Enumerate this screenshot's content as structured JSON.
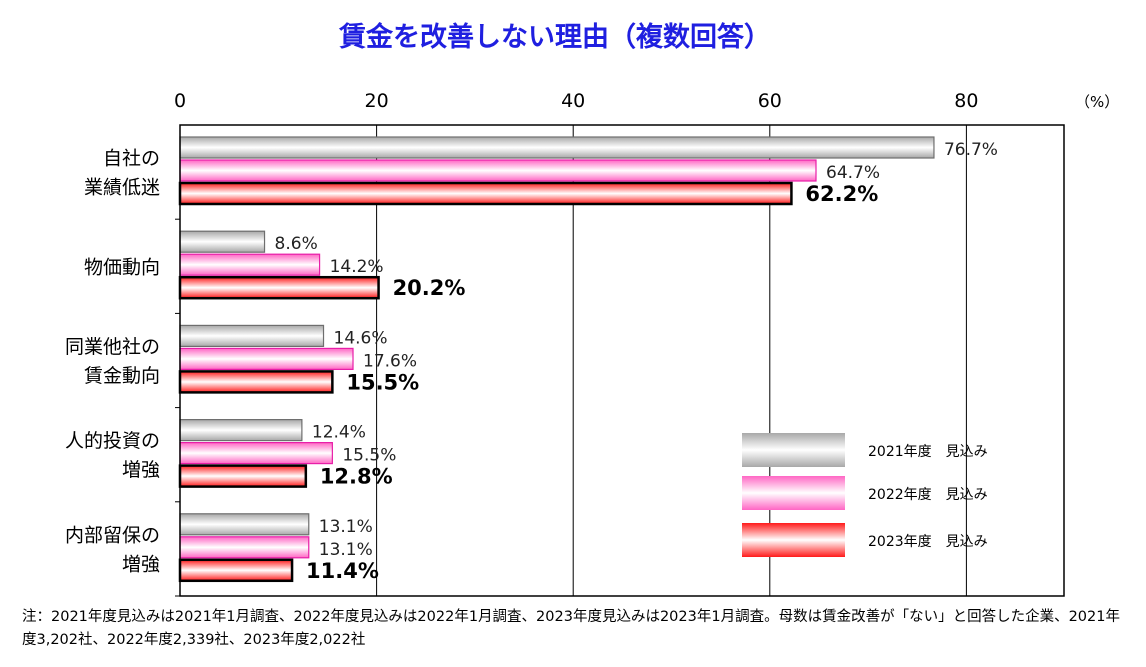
{
  "chart_data": {
    "type": "bar",
    "orientation": "horizontal",
    "title": "賃金を改善しない理由（複数回答）",
    "unit": "（%）",
    "xlim": [
      0,
      90
    ],
    "xticks": [
      0,
      20,
      40,
      60,
      80
    ],
    "grid": true,
    "legend_position": "bottom-right",
    "categories": [
      [
        "自社の",
        "業績低迷"
      ],
      [
        "物価動向"
      ],
      [
        "同業他社の",
        "賃金動向"
      ],
      [
        "人的投資の",
        "増強"
      ],
      [
        "内部留保の",
        "増強"
      ]
    ],
    "series": [
      {
        "name": "2021年度　見込み",
        "values": [
          76.7,
          8.6,
          14.6,
          12.4,
          13.1
        ],
        "labels": [
          "76.7%",
          "8.6%",
          "14.6%",
          "12.4%",
          "13.1%"
        ],
        "color": "#b0b0b0"
      },
      {
        "name": "2022年度　見込み",
        "values": [
          64.7,
          14.2,
          17.6,
          15.5,
          13.1
        ],
        "labels": [
          "64.7%",
          "14.2%",
          "17.6%",
          "15.5%",
          "13.1%"
        ],
        "color": "#ff6ec7"
      },
      {
        "name": "2023年度　見込み",
        "values": [
          62.2,
          20.2,
          15.5,
          12.8,
          11.4
        ],
        "labels": [
          "62.2%",
          "20.2%",
          "15.5%",
          "12.8%",
          "11.4%"
        ],
        "color": "#ff2020"
      }
    ]
  },
  "note": "注：2021年度見込みは2021年1月調査、2022年度見込みは2022年1月調査、2023年度見込みは2023年1月調査。母数は賃金改善が「ない」と回答した企業、2021年度3,202社、2022年度2,339社、2023年度2,022社"
}
